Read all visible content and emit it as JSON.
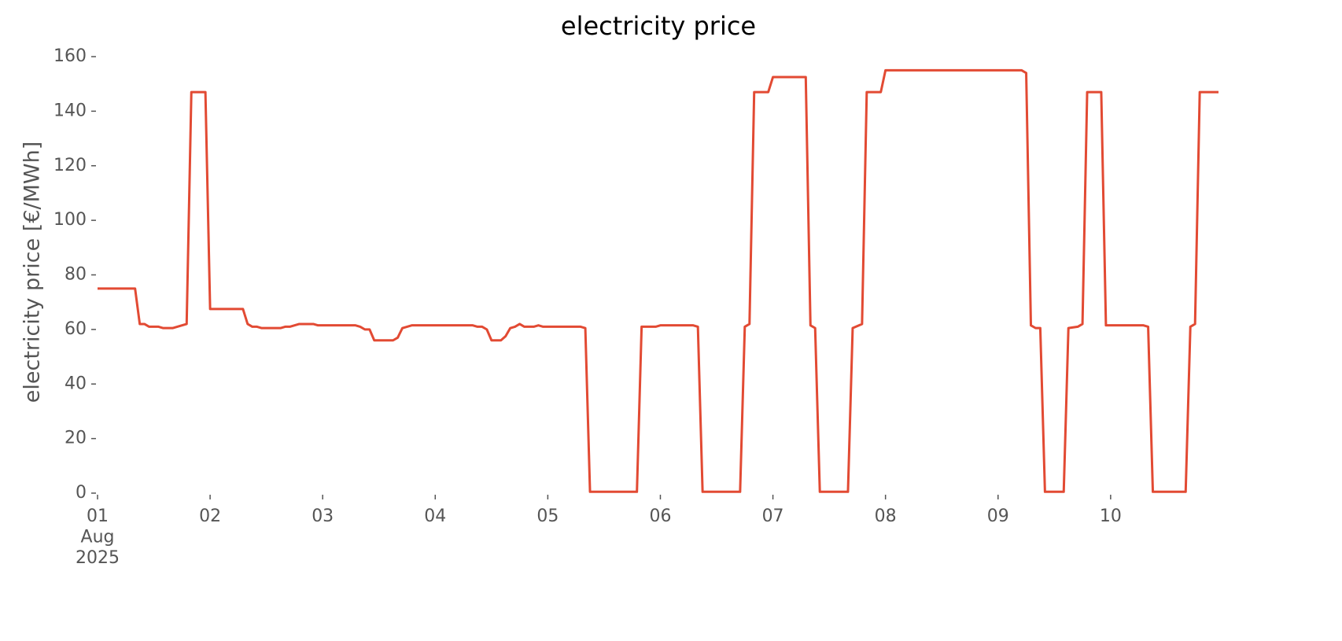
{
  "chart_data": {
    "type": "line",
    "title": "electricity price",
    "ylabel": "electricity price [€/MWh]",
    "color": "#e24a33",
    "grid": false,
    "x": [
      0,
      8,
      9,
      10,
      11,
      13,
      14,
      16,
      18,
      19,
      20,
      23,
      24,
      31,
      32,
      33,
      34,
      35,
      39,
      40,
      41,
      43,
      46,
      47,
      55,
      56,
      57,
      58,
      59,
      63,
      64,
      65,
      67,
      80,
      81,
      82,
      83,
      84,
      86,
      87,
      88,
      89,
      90,
      91,
      93,
      94,
      95,
      103,
      104,
      105,
      115,
      116,
      119,
      120,
      127,
      128,
      129,
      137,
      138,
      139,
      140,
      143,
      144,
      151,
      152,
      153,
      154,
      160,
      161,
      163,
      164,
      167,
      168,
      197,
      198,
      199,
      200,
      201,
      202,
      206,
      207,
      209,
      210,
      211,
      214,
      215,
      223,
      224,
      225,
      232,
      233,
      234,
      235,
      239
    ],
    "values": [
      75,
      75,
      62,
      62,
      61,
      61,
      60.5,
      60.5,
      61.5,
      62,
      147,
      147,
      67.5,
      67.5,
      62,
      61,
      61,
      60.5,
      60.5,
      61,
      61,
      62,
      62,
      61.5,
      61.5,
      61,
      60,
      60,
      56,
      56,
      57,
      60.5,
      61.5,
      61.5,
      61,
      61,
      60,
      56,
      56,
      57.5,
      60.5,
      61,
      62,
      61,
      61,
      61.5,
      61,
      61,
      60.5,
      0.5,
      0.5,
      61,
      61,
      61.5,
      61.5,
      61,
      0.5,
      0.5,
      61,
      62,
      147,
      147,
      152.5,
      152.5,
      61.5,
      60.5,
      0.5,
      0.5,
      60.5,
      62,
      147,
      147,
      155,
      155,
      154,
      61.5,
      60.5,
      60.5,
      0.5,
      0.5,
      60.5,
      61,
      62,
      147,
      147,
      61.5,
      61.5,
      61,
      0.5,
      0.5,
      61,
      62,
      147,
      147
    ],
    "xlim": [
      0,
      239
    ],
    "xticks": [
      {
        "value": 0,
        "label": "01\nAug\n2025"
      },
      {
        "value": 24,
        "label": "02"
      },
      {
        "value": 48,
        "label": "03"
      },
      {
        "value": 72,
        "label": "04"
      },
      {
        "value": 96,
        "label": "05"
      },
      {
        "value": 120,
        "label": "06"
      },
      {
        "value": 144,
        "label": "07"
      },
      {
        "value": 168,
        "label": "08"
      },
      {
        "value": 192,
        "label": "09"
      },
      {
        "value": 216,
        "label": "10"
      }
    ],
    "ylim": [
      0,
      160
    ],
    "yticks": [
      0,
      20,
      40,
      60,
      80,
      100,
      120,
      140,
      160
    ]
  }
}
